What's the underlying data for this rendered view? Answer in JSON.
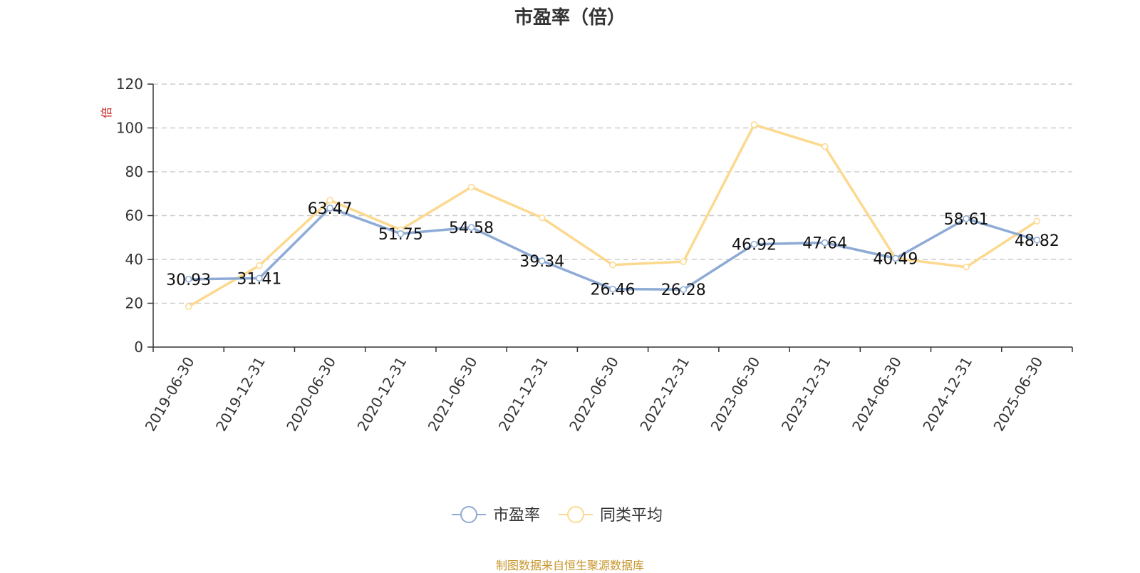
{
  "chart_data": {
    "type": "line",
    "title": "市盈率（倍）",
    "ylabel": "倍",
    "ylim": [
      0,
      120
    ],
    "yticks": [
      0,
      20,
      40,
      60,
      80,
      100,
      120
    ],
    "grid": "y-dashed",
    "legend_position": "bottom",
    "categories": [
      "2019-06-30",
      "2019-12-31",
      "2020-06-30",
      "2020-12-31",
      "2021-06-30",
      "2021-12-31",
      "2022-06-30",
      "2022-12-31",
      "2023-06-30",
      "2023-12-31",
      "2024-06-30",
      "2024-12-31",
      "2025-06-30"
    ],
    "series": [
      {
        "name": "市盈率",
        "color": "#8eabd6",
        "values": [
          30.93,
          31.41,
          63.47,
          51.75,
          54.58,
          39.34,
          26.46,
          26.28,
          46.92,
          47.64,
          40.49,
          58.61,
          48.82
        ],
        "labels": [
          "30.93",
          "31.41",
          "63.47",
          "51.75",
          "54.58",
          "39.34",
          "26.46",
          "26.28",
          "46.92",
          "47.64",
          "40.49",
          "58.61",
          "48.82"
        ]
      },
      {
        "name": "同类平均",
        "color": "#fcd98f",
        "values": [
          18.5,
          37.2,
          67.0,
          53.5,
          73.0,
          59.0,
          37.5,
          39.0,
          101.5,
          91.5,
          40.5,
          36.5,
          57.5
        ]
      }
    ]
  },
  "source_note": "制图数据来自恒生聚源数据库"
}
